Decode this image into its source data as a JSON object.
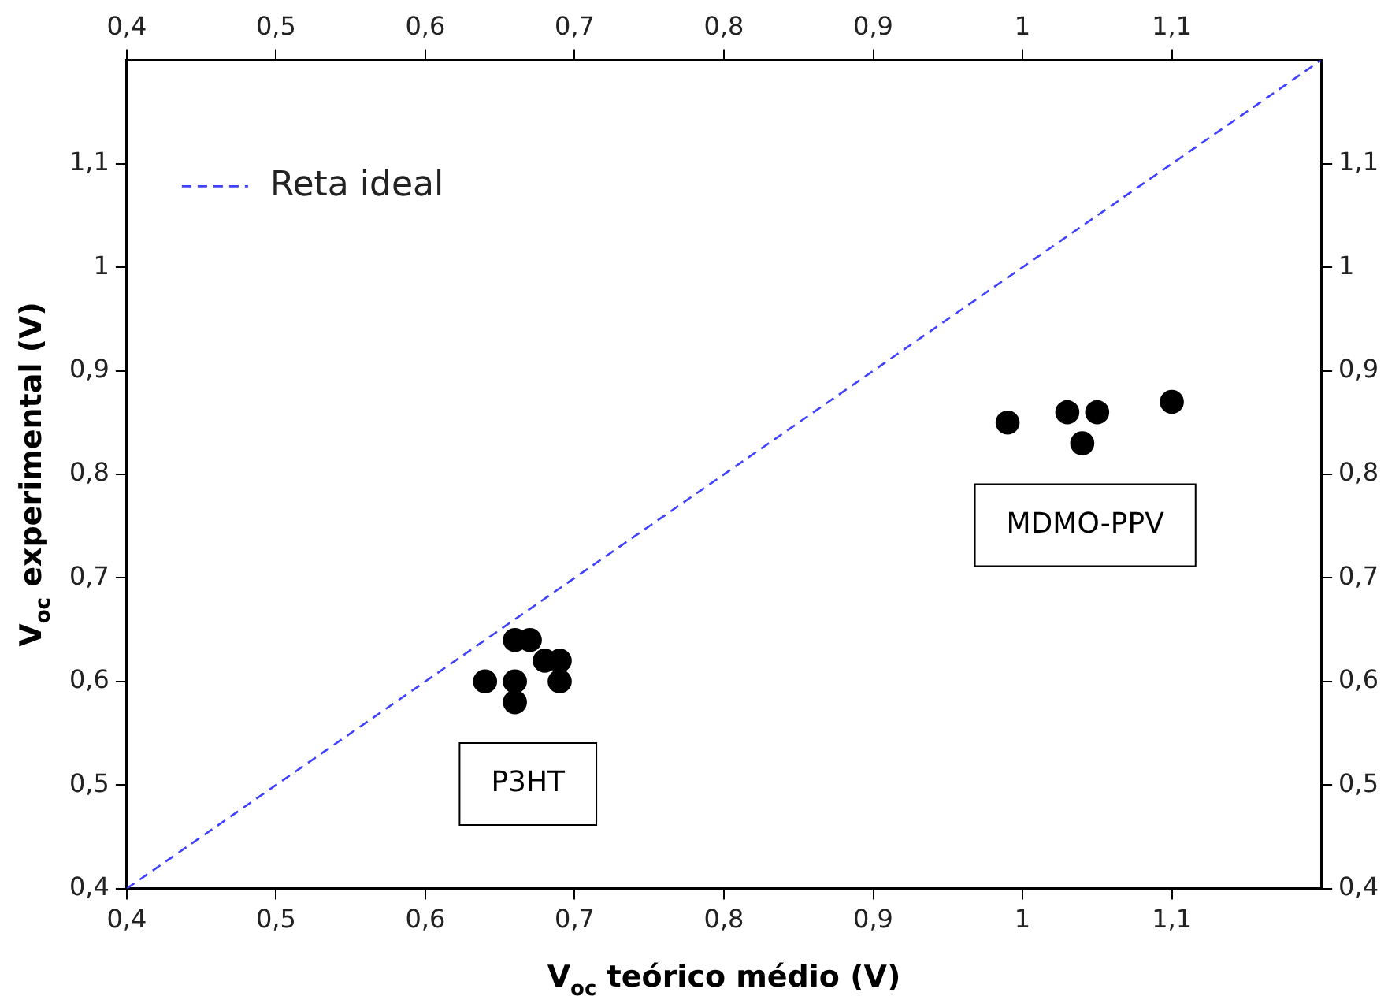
{
  "chart_data": {
    "type": "scatter",
    "xlabel": "V$_{oc}$ teórico médio (V)",
    "ylabel": "V$_{oc}$ experimental (V)",
    "xlim": [
      0.4,
      1.2
    ],
    "ylim": [
      0.4,
      1.2
    ],
    "x2lim": [
      0.4,
      1.2
    ],
    "y2lim": [
      0.4,
      1.2
    ],
    "xticks": [
      {
        "value": 0.4,
        "label": "0,4"
      },
      {
        "value": 0.5,
        "label": "0,5"
      },
      {
        "value": 0.6,
        "label": "0,6"
      },
      {
        "value": 0.7,
        "label": "0,7"
      },
      {
        "value": 0.8,
        "label": "0,8"
      },
      {
        "value": 0.9,
        "label": "0,9"
      },
      {
        "value": 1,
        "label": "1"
      },
      {
        "value": 1.1,
        "label": "1,1"
      }
    ],
    "x2ticks": [
      {
        "value": 0.4,
        "label": "0,4"
      },
      {
        "value": 0.5,
        "label": "0,5"
      },
      {
        "value": 0.6,
        "label": "0,6"
      },
      {
        "value": 0.7,
        "label": "0,7"
      },
      {
        "value": 0.8,
        "label": "0,8"
      },
      {
        "value": 0.9,
        "label": "0,9"
      },
      {
        "value": 1,
        "label": "1"
      },
      {
        "value": 1.1,
        "label": "1,1"
      }
    ],
    "yticks": [
      {
        "value": 0.4,
        "label": "0,4"
      },
      {
        "value": 0.5,
        "label": "0,5"
      },
      {
        "value": 0.6,
        "label": "0,6"
      },
      {
        "value": 0.7,
        "label": "0,7"
      },
      {
        "value": 0.8,
        "label": "0,8"
      },
      {
        "value": 0.9,
        "label": "0,9"
      },
      {
        "value": 1,
        "label": "1"
      },
      {
        "value": 1.1,
        "label": "1,1"
      }
    ],
    "y2ticks": [
      {
        "value": 0.4,
        "label": "0,4"
      },
      {
        "value": 0.5,
        "label": "0,5"
      },
      {
        "value": 0.6,
        "label": "0,6"
      },
      {
        "value": 0.7,
        "label": "0,7"
      },
      {
        "value": 0.8,
        "label": "0,8"
      },
      {
        "value": 0.9,
        "label": "0,9"
      },
      {
        "value": 1,
        "label": "1"
      },
      {
        "value": 1.1,
        "label": "1,1"
      }
    ],
    "grid": false,
    "legend": "top left",
    "marker": "circle",
    "series": [
      {
        "type": "line",
        "name": "Reta ideal",
        "color": "#4040ff",
        "line_style": "dashed",
        "marker": "none",
        "x": [
          0.4,
          1.2
        ],
        "values": [
          0.4,
          1.2
        ]
      },
      {
        "name": "P3HT",
        "color": "#000000",
        "x": [
          0.64,
          0.66,
          0.67,
          0.66,
          0.66,
          0.68,
          0.69,
          0.69
        ],
        "values": [
          0.6,
          0.64,
          0.64,
          0.6,
          0.58,
          0.62,
          0.62,
          0.6
        ]
      },
      {
        "name": "MDMO-PPV",
        "color": "#000000",
        "x": [
          0.99,
          1.03,
          1.05,
          1.04,
          1.1
        ],
        "values": [
          0.85,
          0.86,
          0.86,
          0.83,
          0.87
        ]
      }
    ]
  }
}
